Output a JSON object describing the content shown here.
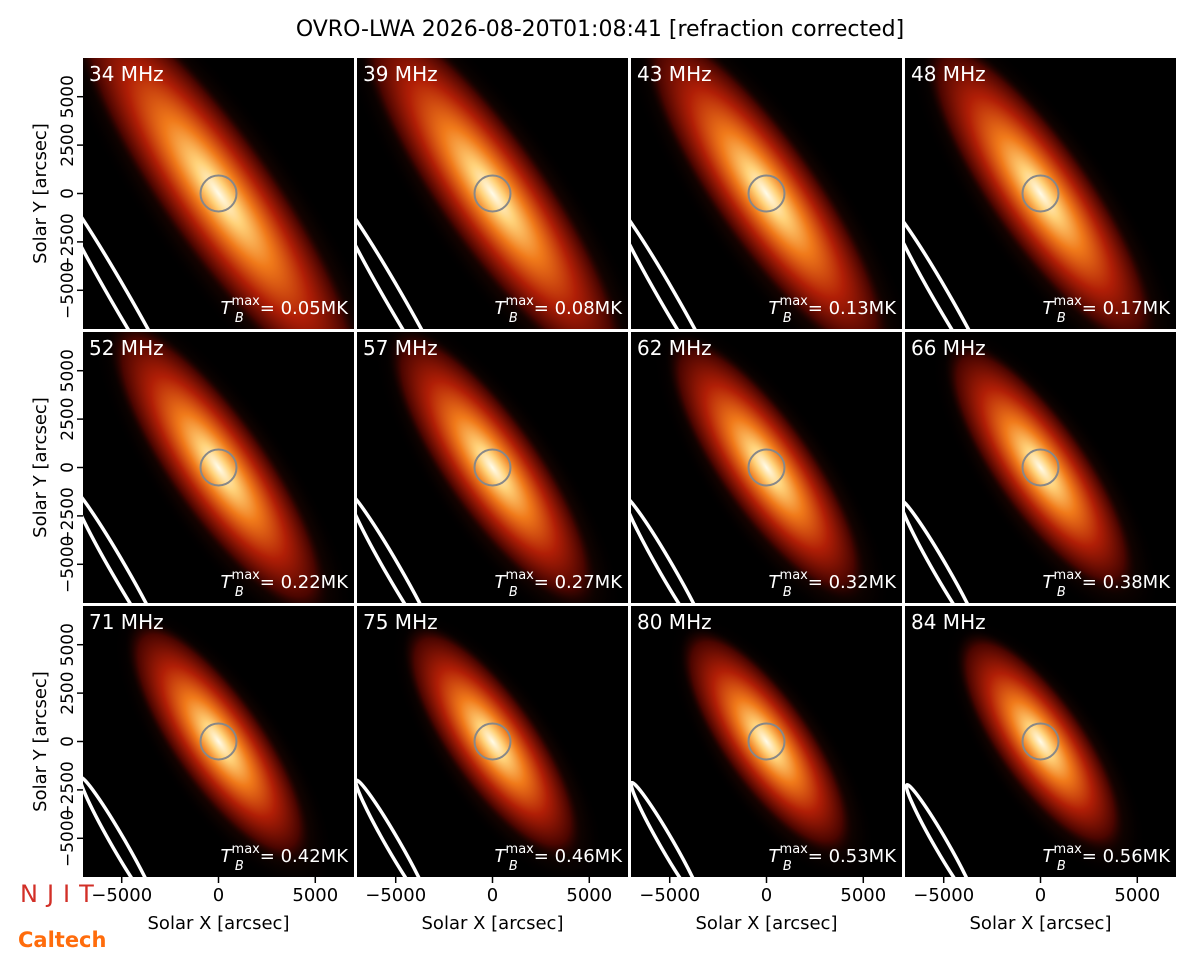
{
  "chart_data": {
    "type": "image-grid",
    "title": "OVRO-LWA 2026-08-20T01:08:41 [refraction corrected]",
    "xlabel": "Solar X [arcsec]",
    "ylabel": "Solar Y [arcsec]",
    "xlim": [
      -7000,
      7000
    ],
    "ylim": [
      -7000,
      7000
    ],
    "xticks": [
      {
        "value": -5000,
        "label": "−5000"
      },
      0,
      5000
    ],
    "yticks": [
      {
        "value": -5000,
        "label": "−5000"
      },
      {
        "value": -2500,
        "label": "−2500"
      },
      0,
      2500,
      5000
    ],
    "tb_symbol": "T",
    "tb_subscript": "B",
    "tb_superscript": "max",
    "panels": [
      {
        "frequency": "34 MHz",
        "tb_max": "= 0.05MK"
      },
      {
        "frequency": "39 MHz",
        "tb_max": "= 0.08MK"
      },
      {
        "frequency": "43 MHz",
        "tb_max": "= 0.13MK"
      },
      {
        "frequency": "48 MHz",
        "tb_max": "= 0.17MK"
      },
      {
        "frequency": "52 MHz",
        "tb_max": "= 0.22MK"
      },
      {
        "frequency": "57 MHz",
        "tb_max": "= 0.27MK"
      },
      {
        "frequency": "62 MHz",
        "tb_max": "= 0.32MK"
      },
      {
        "frequency": "66 MHz",
        "tb_max": "= 0.38MK"
      },
      {
        "frequency": "71 MHz",
        "tb_max": "= 0.42MK"
      },
      {
        "frequency": "75 MHz",
        "tb_max": "= 0.46MK"
      },
      {
        "frequency": "80 MHz",
        "tb_max": "= 0.53MK"
      },
      {
        "frequency": "84 MHz",
        "tb_max": "= 0.56MK"
      }
    ],
    "logos": [
      "NJIT",
      "Caltech"
    ]
  }
}
